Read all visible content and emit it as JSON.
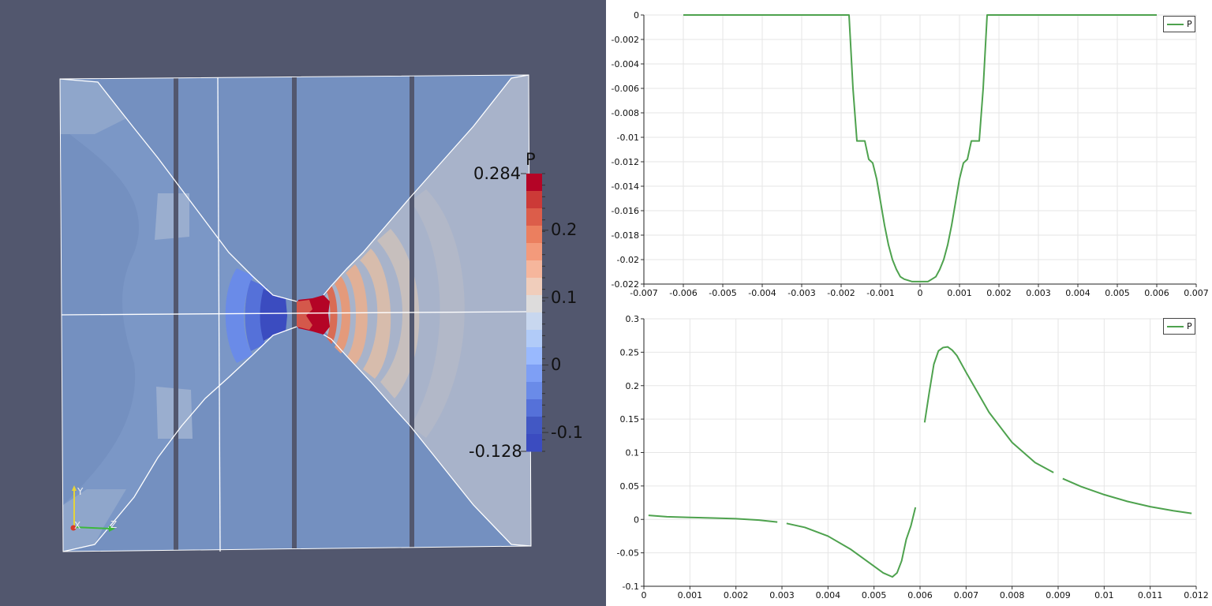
{
  "colormap": {
    "title": "P",
    "range_max_label": "0.284",
    "range_min_label": "-0.128",
    "range": [
      -0.128,
      0.284
    ],
    "tick_labels": [
      "0.2",
      "0.1",
      "0",
      "-0.1"
    ],
    "tick_values": [
      0.2,
      0.1,
      0,
      -0.1
    ],
    "colors": [
      "#b40426",
      "#cc3a37",
      "#dc5d4a",
      "#eb7f5f",
      "#f39a7b",
      "#f6b69c",
      "#f0cdbb",
      "#dddcdc",
      "#c8d7ef",
      "#b1cbf8",
      "#99b9fe",
      "#7e9ff5",
      "#6a8be8",
      "#5571d9",
      "#4258c4",
      "#3b4cc0"
    ]
  },
  "axes_widget": {
    "y": "Y",
    "x": "X",
    "z": "Z"
  },
  "chart_data": [
    {
      "type": "line",
      "x": [
        -0.006,
        -0.0018,
        -0.0017,
        -0.0016,
        -0.0015,
        -0.0014,
        -0.0013,
        -0.0012,
        -0.0011,
        -0.001,
        -0.0009,
        -0.0008,
        -0.0007,
        -0.0006,
        -0.0005,
        -0.0004,
        -0.0003,
        -0.0002,
        -0.0001,
        0,
        0.0001,
        0.0002,
        0.0003,
        0.0004,
        0.0005,
        0.0006,
        0.0007,
        0.0008,
        0.0009,
        0.001,
        0.0011,
        0.0012,
        0.0013,
        0.0014,
        0.0015,
        0.0016,
        0.0017,
        0.0018,
        0.006
      ],
      "series": [
        {
          "name": "P",
          "color": "#4ea24e",
          "values": [
            0,
            0,
            -0.006,
            -0.0103,
            -0.0103,
            -0.0103,
            -0.0118,
            -0.0121,
            -0.0134,
            -0.0153,
            -0.0172,
            -0.0188,
            -0.02,
            -0.0208,
            -0.0214,
            -0.0216,
            -0.0217,
            -0.0218,
            -0.0218,
            -0.0218,
            -0.0218,
            -0.0218,
            -0.0216,
            -0.0214,
            -0.0208,
            -0.02,
            -0.0188,
            -0.0172,
            -0.0153,
            -0.0134,
            -0.0121,
            -0.0118,
            -0.0103,
            -0.0103,
            -0.0103,
            -0.006,
            0,
            0,
            0
          ]
        }
      ],
      "xlim": [
        -0.007,
        0.007
      ],
      "ylim": [
        -0.022,
        0
      ],
      "xticks": [
        "-0.007",
        "-0.006",
        "-0.005",
        "-0.004",
        "-0.003",
        "-0.002",
        "-0.001",
        "0",
        "0.001",
        "0.002",
        "0.003",
        "0.004",
        "0.005",
        "0.006",
        "0.007"
      ],
      "yticks": [
        "0",
        "-0.002",
        "-0.004",
        "-0.006",
        "-0.008",
        "-0.01",
        "-0.012",
        "-0.014",
        "-0.016",
        "-0.018",
        "-0.02",
        "-0.022"
      ],
      "grid": true,
      "legend": "top-right"
    },
    {
      "type": "line",
      "segments": [
        {
          "x": [
            0.0001,
            0.0005,
            0.001,
            0.0015,
            0.002,
            0.0025,
            0.0029
          ],
          "y": [
            0.006,
            0.004,
            0.003,
            0.002,
            0.001,
            -0.001,
            -0.004
          ]
        },
        {
          "x": [
            0.0031,
            0.0035,
            0.004,
            0.0045,
            0.005,
            0.0052,
            0.0054,
            0.0055,
            0.0056,
            0.0057,
            0.0058,
            0.0059
          ],
          "y": [
            -0.006,
            -0.012,
            -0.025,
            -0.045,
            -0.07,
            -0.08,
            -0.086,
            -0.08,
            -0.062,
            -0.03,
            -0.01,
            0.018
          ]
        },
        {
          "x": [
            0.0061,
            0.0062,
            0.0063,
            0.0064,
            0.0065,
            0.0066,
            0.0067,
            0.0068,
            0.007,
            0.0075,
            0.008,
            0.0085,
            0.0089
          ],
          "y": [
            0.145,
            0.19,
            0.232,
            0.252,
            0.257,
            0.258,
            0.253,
            0.245,
            0.22,
            0.16,
            0.115,
            0.085,
            0.07
          ]
        },
        {
          "x": [
            0.0091,
            0.0095,
            0.01,
            0.0105,
            0.011,
            0.0115,
            0.0119
          ],
          "y": [
            0.061,
            0.049,
            0.037,
            0.027,
            0.019,
            0.013,
            0.009
          ]
        }
      ],
      "series": [
        {
          "name": "P",
          "color": "#4ea24e"
        }
      ],
      "xlim": [
        0,
        0.012
      ],
      "ylim": [
        -0.1,
        0.3
      ],
      "xticks": [
        "0",
        "0.001",
        "0.002",
        "0.003",
        "0.004",
        "0.005",
        "0.006",
        "0.007",
        "0.008",
        "0.009",
        "0.01",
        "0.011",
        "0.012"
      ],
      "yticks": [
        "0.3",
        "0.25",
        "0.2",
        "0.15",
        "0.1",
        "0.05",
        "0",
        "-0.05",
        "-0.1"
      ],
      "grid": true,
      "legend": "top-right"
    }
  ]
}
